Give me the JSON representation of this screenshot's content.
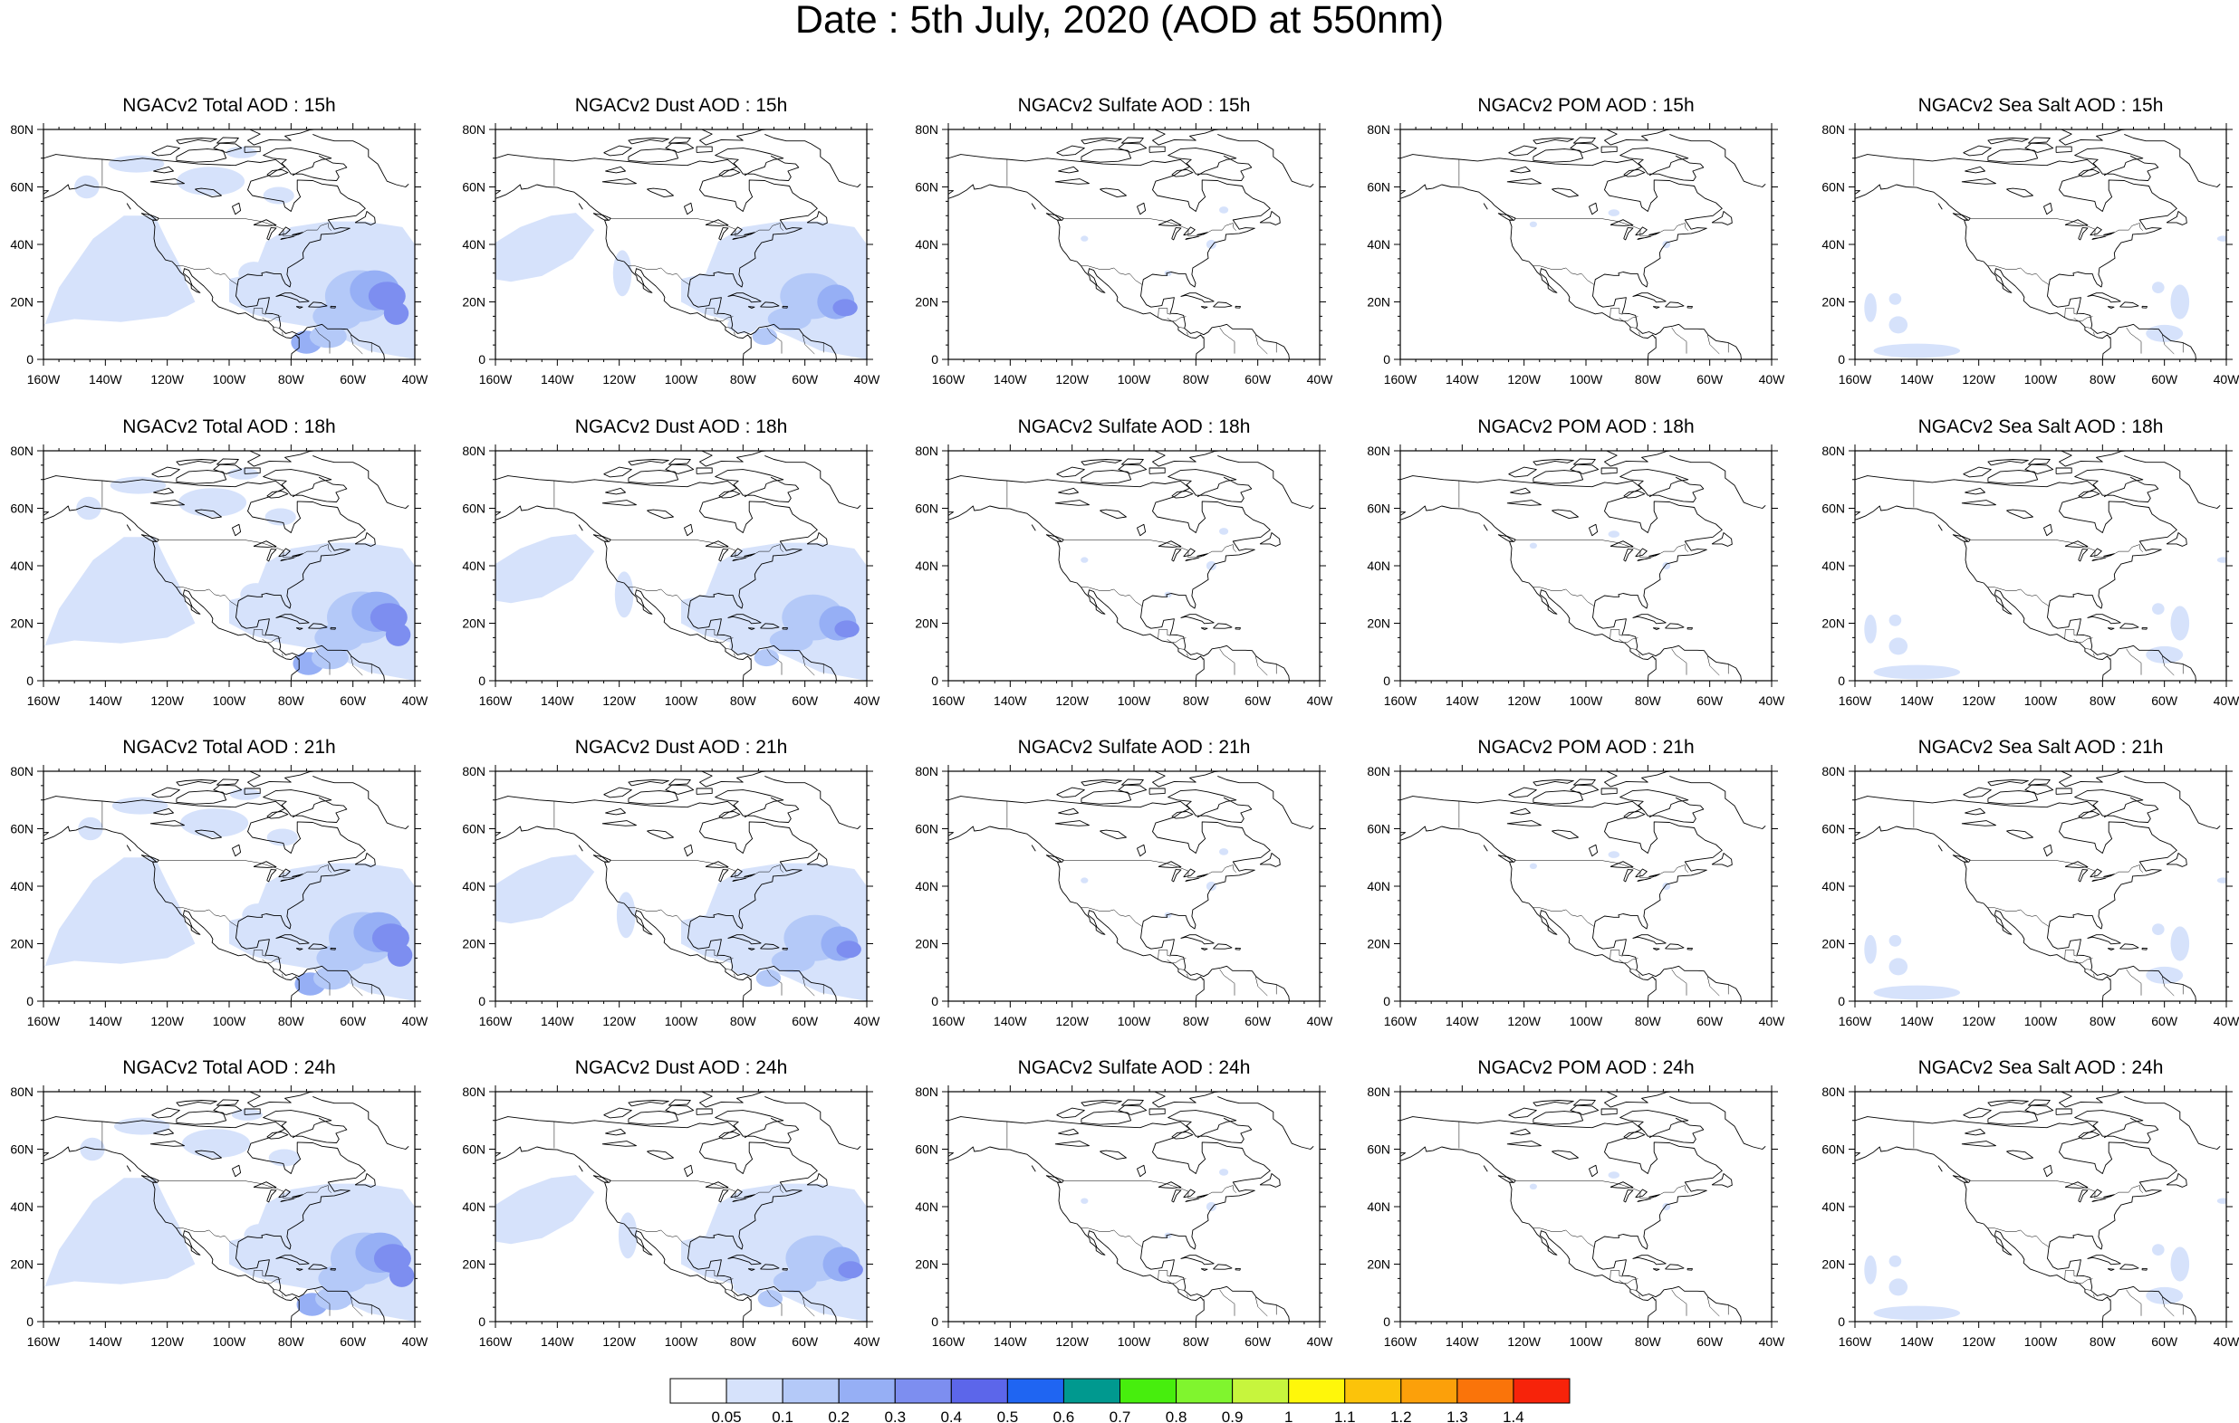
{
  "title": "Date : 5th July, 2020 (AOD at 550nm)",
  "map": {
    "longitude_ticks": [
      "160W",
      "140W",
      "120W",
      "100W",
      "80W",
      "60W",
      "40W"
    ],
    "latitude_ticks": [
      "80N",
      "60N",
      "40N",
      "20N",
      "0"
    ],
    "lon_range": [
      -160,
      -40
    ],
    "lat_range": [
      0,
      80
    ]
  },
  "rows": [
    {
      "hour": "15h",
      "panels": [
        "NGACv2 Total AOD : 15h",
        "NGACv2 Dust AOD : 15h",
        "NGACv2 Sulfate AOD : 15h",
        "NGACv2 POM AOD : 15h",
        "NGACv2 Sea Salt AOD : 15h"
      ]
    },
    {
      "hour": "18h",
      "panels": [
        "NGACv2 Total AOD : 18h",
        "NGACv2 Dust AOD : 18h",
        "NGACv2 Sulfate AOD : 18h",
        "NGACv2 POM AOD : 18h",
        "NGACv2 Sea Salt AOD : 18h"
      ]
    },
    {
      "hour": "21h",
      "panels": [
        "NGACv2 Total AOD : 21h",
        "NGACv2 Dust AOD : 21h",
        "NGACv2 Sulfate AOD : 21h",
        "NGACv2 POM AOD : 21h",
        "NGACv2 Sea Salt AOD : 21h"
      ]
    },
    {
      "hour": "24h",
      "panels": [
        "NGACv2 Total AOD : 24h",
        "NGACv2 Dust AOD : 24h",
        "NGACv2 Sulfate AOD : 24h",
        "NGACv2 POM AOD : 24h",
        "NGACv2 Sea Salt  AOD : 24h"
      ]
    }
  ],
  "species": [
    "total",
    "dust",
    "sulfate",
    "pom",
    "seasalt"
  ],
  "colorbar": {
    "labels": [
      "0.05",
      "0.1",
      "0.2",
      "0.3",
      "0.4",
      "0.5",
      "0.6",
      "0.7",
      "0.8",
      "0.9",
      "1",
      "1.1",
      "1.2",
      "1.3",
      "1.4"
    ],
    "colors": [
      "#ffffff",
      "#d6e2fb",
      "#b4c9f8",
      "#96aff5",
      "#7d8ef0",
      "#5c66ea",
      "#1f65f2",
      "#00998f",
      "#47ee0d",
      "#80f52e",
      "#c7f53d",
      "#fff70a",
      "#fcc30a",
      "#fca00a",
      "#fa740a",
      "#f7230a"
    ]
  },
  "land_color": "#ffffff",
  "coast_color": "#000000"
}
